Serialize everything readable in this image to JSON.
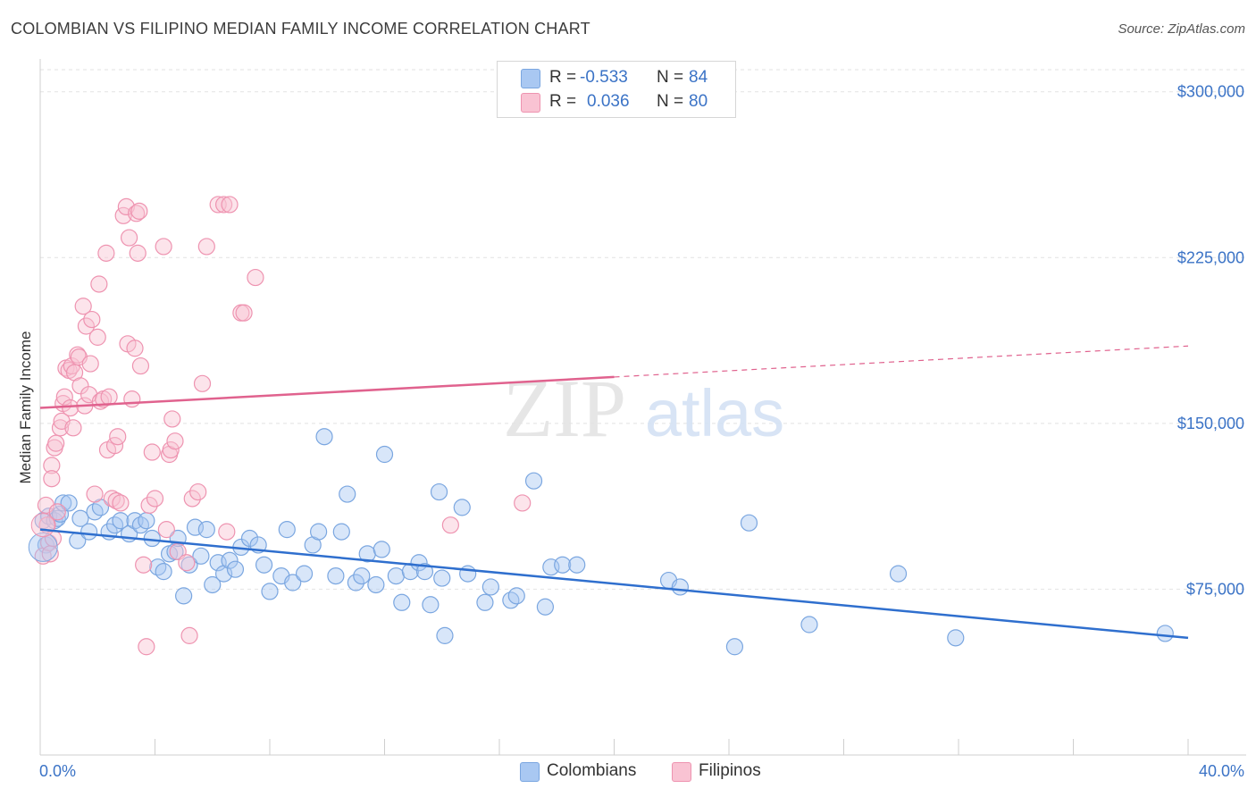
{
  "title": "COLOMBIAN VS FILIPINO MEDIAN FAMILY INCOME CORRELATION CHART",
  "source": "Source: ZipAtlas.com",
  "watermark": {
    "zip": "ZIP",
    "atlas": "atlas"
  },
  "legend": {
    "rows": [
      {
        "r_label": "R =",
        "r_value": "-0.533",
        "n_label": "N =",
        "n_value": "84",
        "color": "#a9c8f2",
        "border": "#7aa6e0"
      },
      {
        "r_label": "R =",
        "r_value": "0.036",
        "n_label": "N =",
        "n_value": "80",
        "color": "#f9c3d3",
        "border": "#ee93b0"
      }
    ]
  },
  "bottom_legend": [
    {
      "label": "Colombians",
      "color": "#a9c8f2",
      "border": "#7aa6e0"
    },
    {
      "label": "Filipinos",
      "color": "#f9c3d3",
      "border": "#ee93b0"
    }
  ],
  "chart_data": {
    "type": "scatter",
    "title": "COLOMBIAN VS FILIPINO MEDIAN FAMILY INCOME CORRELATION CHART",
    "xlabel": "",
    "ylabel": "Median Family Income",
    "x_tick_labels": [
      "0.0%",
      "40.0%"
    ],
    "y_tick_labels": [
      "$75,000",
      "$150,000",
      "$225,000",
      "$300,000"
    ],
    "y_ticks": [
      75000,
      150000,
      225000,
      300000
    ],
    "xlim": [
      0,
      40
    ],
    "ylim": [
      0,
      310000
    ],
    "grid": true,
    "legend_position": "top-center",
    "series": [
      {
        "name": "Colombians",
        "color": "#7aa6e0",
        "fill": "rgba(169,200,242,0.45)",
        "line_color": "#2f6fce",
        "trend": {
          "x": [
            0,
            40
          ],
          "y": [
            102000,
            53000
          ],
          "dashed_from": null
        },
        "points": [
          [
            0.1,
            106000
          ],
          [
            0.2,
            95000
          ],
          [
            0.3,
            108000
          ],
          [
            0.5,
            106000
          ],
          [
            0.6,
            107000
          ],
          [
            0.7,
            109000
          ],
          [
            0.8,
            114000
          ],
          [
            1.0,
            114000
          ],
          [
            1.3,
            97000
          ],
          [
            1.4,
            107000
          ],
          [
            1.7,
            101000
          ],
          [
            1.9,
            110000
          ],
          [
            2.1,
            112000
          ],
          [
            2.4,
            101000
          ],
          [
            2.6,
            104000
          ],
          [
            2.8,
            106000
          ],
          [
            3.1,
            100000
          ],
          [
            3.3,
            106000
          ],
          [
            3.5,
            104000
          ],
          [
            3.7,
            106000
          ],
          [
            3.9,
            98000
          ],
          [
            4.1,
            85000
          ],
          [
            4.3,
            83000
          ],
          [
            4.5,
            91000
          ],
          [
            4.7,
            92000
          ],
          [
            4.8,
            98000
          ],
          [
            5.0,
            72000
          ],
          [
            5.2,
            86000
          ],
          [
            5.4,
            103000
          ],
          [
            5.6,
            90000
          ],
          [
            5.8,
            102000
          ],
          [
            6.0,
            77000
          ],
          [
            6.2,
            87000
          ],
          [
            6.4,
            82000
          ],
          [
            6.6,
            88000
          ],
          [
            6.8,
            84000
          ],
          [
            7.0,
            94000
          ],
          [
            7.3,
            98000
          ],
          [
            7.6,
            95000
          ],
          [
            7.8,
            86000
          ],
          [
            8.0,
            74000
          ],
          [
            8.4,
            81000
          ],
          [
            8.6,
            102000
          ],
          [
            8.8,
            78000
          ],
          [
            9.2,
            82000
          ],
          [
            9.5,
            95000
          ],
          [
            9.7,
            101000
          ],
          [
            9.9,
            144000
          ],
          [
            10.3,
            81000
          ],
          [
            10.5,
            101000
          ],
          [
            10.7,
            118000
          ],
          [
            11.0,
            78000
          ],
          [
            11.2,
            81000
          ],
          [
            11.4,
            91000
          ],
          [
            11.7,
            77000
          ],
          [
            11.9,
            93000
          ],
          [
            12.0,
            136000
          ],
          [
            12.4,
            81000
          ],
          [
            12.6,
            69000
          ],
          [
            12.9,
            83000
          ],
          [
            13.2,
            87000
          ],
          [
            13.4,
            83000
          ],
          [
            13.6,
            68000
          ],
          [
            13.9,
            119000
          ],
          [
            14.0,
            80000
          ],
          [
            14.1,
            54000
          ],
          [
            14.7,
            112000
          ],
          [
            14.9,
            82000
          ],
          [
            15.5,
            69000
          ],
          [
            15.7,
            76000
          ],
          [
            16.4,
            70000
          ],
          [
            16.6,
            72000
          ],
          [
            17.2,
            124000
          ],
          [
            17.6,
            67000
          ],
          [
            17.8,
            85000
          ],
          [
            18.2,
            86000
          ],
          [
            18.7,
            86000
          ],
          [
            21.9,
            79000
          ],
          [
            22.3,
            76000
          ],
          [
            24.2,
            49000
          ],
          [
            24.7,
            105000
          ],
          [
            26.8,
            59000
          ],
          [
            29.9,
            82000
          ],
          [
            31.9,
            53000
          ],
          [
            39.2,
            55000
          ]
        ]
      },
      {
        "name": "Filipinos",
        "color": "#ee93b0",
        "fill": "rgba(249,195,211,0.45)",
        "line_color": "#e0628e",
        "trend": {
          "x": [
            0,
            40
          ],
          "y": [
            157000,
            185000
          ],
          "dashed_from": 20
        },
        "points": [
          [
            0.1,
            90000
          ],
          [
            0.2,
            113000
          ],
          [
            0.25,
            104000
          ],
          [
            0.3,
            96000
          ],
          [
            0.4,
            131000
          ],
          [
            0.4,
            125000
          ],
          [
            0.5,
            139000
          ],
          [
            0.55,
            141000
          ],
          [
            0.7,
            148000
          ],
          [
            0.75,
            151000
          ],
          [
            0.8,
            159000
          ],
          [
            0.85,
            162000
          ],
          [
            0.9,
            175000
          ],
          [
            1.0,
            174000
          ],
          [
            1.05,
            157000
          ],
          [
            1.1,
            176000
          ],
          [
            1.15,
            148000
          ],
          [
            1.2,
            173000
          ],
          [
            1.3,
            181000
          ],
          [
            1.35,
            180000
          ],
          [
            1.4,
            167000
          ],
          [
            1.5,
            203000
          ],
          [
            1.55,
            158000
          ],
          [
            1.6,
            194000
          ],
          [
            1.7,
            163000
          ],
          [
            1.75,
            177000
          ],
          [
            1.8,
            197000
          ],
          [
            1.9,
            118000
          ],
          [
            2.0,
            189000
          ],
          [
            2.05,
            213000
          ],
          [
            2.1,
            160000
          ],
          [
            2.2,
            161000
          ],
          [
            2.3,
            227000
          ],
          [
            2.35,
            138000
          ],
          [
            2.4,
            162000
          ],
          [
            2.5,
            116000
          ],
          [
            2.6,
            140000
          ],
          [
            2.65,
            115000
          ],
          [
            2.7,
            144000
          ],
          [
            2.8,
            114000
          ],
          [
            2.9,
            244000
          ],
          [
            3.0,
            248000
          ],
          [
            3.05,
            186000
          ],
          [
            3.1,
            234000
          ],
          [
            3.2,
            161000
          ],
          [
            3.3,
            184000
          ],
          [
            3.35,
            245000
          ],
          [
            3.4,
            227000
          ],
          [
            3.45,
            246000
          ],
          [
            3.5,
            176000
          ],
          [
            3.6,
            86000
          ],
          [
            3.7,
            49000
          ],
          [
            3.8,
            113000
          ],
          [
            3.9,
            137000
          ],
          [
            4.0,
            116000
          ],
          [
            4.3,
            230000
          ],
          [
            4.4,
            102000
          ],
          [
            4.5,
            136000
          ],
          [
            4.55,
            138000
          ],
          [
            4.6,
            152000
          ],
          [
            4.7,
            142000
          ],
          [
            4.8,
            92000
          ],
          [
            5.1,
            87000
          ],
          [
            5.2,
            54000
          ],
          [
            5.3,
            116000
          ],
          [
            5.5,
            119000
          ],
          [
            5.65,
            168000
          ],
          [
            5.8,
            230000
          ],
          [
            6.2,
            249000
          ],
          [
            6.4,
            249000
          ],
          [
            6.5,
            101000
          ],
          [
            6.6,
            249000
          ],
          [
            7.0,
            200000
          ],
          [
            7.1,
            200000
          ],
          [
            7.5,
            216000
          ],
          [
            14.3,
            104000
          ],
          [
            16.8,
            114000
          ],
          [
            0.6,
            110000
          ],
          [
            0.35,
            91000
          ],
          [
            0.45,
            98000
          ]
        ]
      }
    ]
  }
}
